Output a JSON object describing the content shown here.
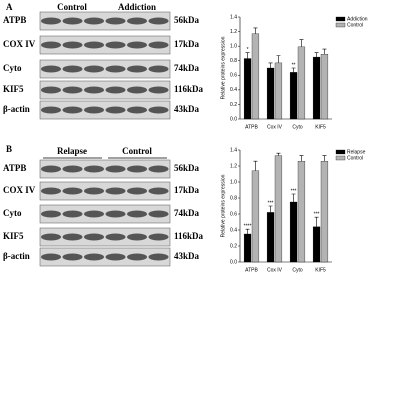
{
  "blots": [
    {
      "panel": "A",
      "groups": [
        "Control",
        "Addiction"
      ],
      "rows": [
        {
          "protein": "ATPB",
          "size": "56kDa"
        },
        {
          "protein": "COX IV",
          "size": "17kDa"
        },
        {
          "protein": "Cyto",
          "size": "74kDa"
        },
        {
          "protein": "KIF5",
          "size": "116kDa"
        },
        {
          "protein": "β-actin",
          "size": "43kDa"
        }
      ]
    },
    {
      "panel": "B",
      "groups": [
        "Relapse",
        "Control"
      ],
      "rows": [
        {
          "protein": "ATPB",
          "size": "56kDa"
        },
        {
          "protein": "COX IV",
          "size": "17kDa"
        },
        {
          "protein": "Cyto",
          "size": "74kDa"
        },
        {
          "protein": "KIF5",
          "size": "116kDa"
        },
        {
          "protein": "β-actin",
          "size": "43kDa"
        }
      ]
    }
  ],
  "chart_data": [
    {
      "type": "bar",
      "y_label": "Relative proteins expression",
      "categories": [
        "ATPB",
        "Cox IV",
        "Cyto",
        "KIF5"
      ],
      "series": [
        {
          "name": "Addiction",
          "color": "#000000",
          "values": [
            0.83,
            0.7,
            0.64,
            0.85
          ],
          "errors": [
            0.08,
            0.07,
            0.06,
            0.06
          ]
        },
        {
          "name": "Control",
          "color": "#b3b3b3",
          "values": [
            1.17,
            0.77,
            0.99,
            0.89
          ],
          "errors": [
            0.08,
            0.1,
            0.1,
            0.07
          ]
        }
      ],
      "annotations": [
        "*",
        null,
        "**",
        null
      ],
      "ylim": [
        0,
        1.4
      ],
      "yticks": [
        {
          "value": 0,
          "label": "0.0"
        },
        0.2,
        0.4,
        0.6,
        0.8,
        {
          "value": 1,
          "label": "1.0"
        },
        1.2,
        1.4
      ],
      "legend": "upper right"
    },
    {
      "type": "bar",
      "y_label": "Relative proteins expression",
      "categories": [
        "ATPB",
        "Cox IV",
        "Cyto",
        "KIF5"
      ],
      "series": [
        {
          "name": "Relapse",
          "color": "#000000",
          "values": [
            0.35,
            0.62,
            0.75,
            0.44
          ],
          "errors": [
            0.06,
            0.08,
            0.1,
            0.12
          ]
        },
        {
          "name": "Control",
          "color": "#b3b3b3",
          "values": [
            1.14,
            1.33,
            1.26,
            1.26
          ],
          "errors": [
            0.12,
            0.03,
            0.07,
            0.07
          ]
        }
      ],
      "annotations": [
        "****",
        "***",
        "***",
        "***"
      ],
      "ylim": [
        0,
        1.4
      ],
      "yticks": [
        {
          "value": 0,
          "label": "0.0"
        },
        0.2,
        0.4,
        0.6,
        0.8,
        {
          "value": 1,
          "label": "1.0"
        },
        1.2,
        1.4
      ],
      "legend": "upper right"
    }
  ]
}
